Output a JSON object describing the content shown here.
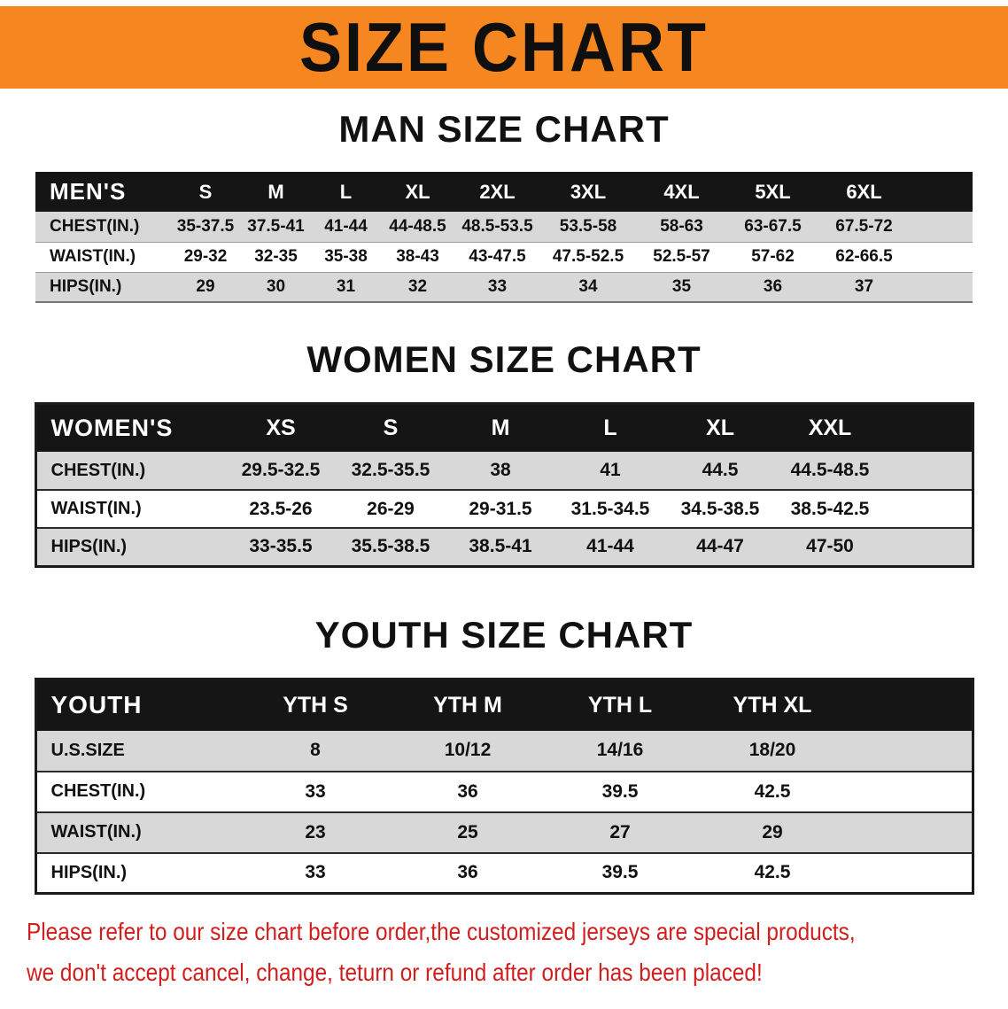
{
  "banner": {
    "title": "SIZE CHART"
  },
  "colors": {
    "banner_orange": "#f6861f",
    "header_black": "#151515",
    "row_gray": "#d8d8d8",
    "notice_red": "#d21d1d"
  },
  "sections": [
    {
      "id": "men",
      "heading": "MAN SIZE CHART",
      "table": {
        "label_header": "MEN'S",
        "size_headers": [
          "S",
          "M",
          "L",
          "XL",
          "2XL",
          "3XL",
          "4XL",
          "5XL",
          "6XL"
        ],
        "rows": [
          {
            "label": "CHEST(IN.)",
            "values": [
              "35-37.5",
              "37.5-41",
              "41-44",
              "44-48.5",
              "48.5-53.5",
              "53.5-58",
              "58-63",
              "63-67.5",
              "67.5-72"
            ]
          },
          {
            "label": "WAIST(IN.)",
            "values": [
              "29-32",
              "32-35",
              "35-38",
              "38-43",
              "43-47.5",
              "47.5-52.5",
              "52.5-57",
              "57-62",
              "62-66.5"
            ]
          },
          {
            "label": "HIPS(IN.)",
            "values": [
              "29",
              "30",
              "31",
              "32",
              "33",
              "34",
              "35",
              "36",
              "37"
            ]
          }
        ]
      }
    },
    {
      "id": "women",
      "heading": "WOMEN SIZE CHART",
      "table": {
        "label_header": "WOMEN'S",
        "size_headers": [
          "XS",
          "S",
          "M",
          "L",
          "XL",
          "XXL"
        ],
        "rows": [
          {
            "label": "CHEST(IN.)",
            "values": [
              "29.5-32.5",
              "32.5-35.5",
              "38",
              "41",
              "44.5",
              "44.5-48.5"
            ]
          },
          {
            "label": "WAIST(IN.)",
            "values": [
              "23.5-26",
              "26-29",
              "29-31.5",
              "31.5-34.5",
              "34.5-38.5",
              "38.5-42.5"
            ]
          },
          {
            "label": "HIPS(IN.)",
            "values": [
              "33-35.5",
              "35.5-38.5",
              "38.5-41",
              "41-44",
              "44-47",
              "47-50"
            ]
          }
        ]
      }
    },
    {
      "id": "youth",
      "heading": "YOUTH SIZE CHART",
      "table": {
        "label_header": "YOUTH",
        "size_headers": [
          "YTH S",
          "YTH M",
          "YTH L",
          "YTH XL"
        ],
        "rows": [
          {
            "label": "U.S.SIZE",
            "values": [
              "8",
              "10/12",
              "14/16",
              "18/20"
            ]
          },
          {
            "label": "CHEST(IN.)",
            "values": [
              "33",
              "36",
              "39.5",
              "42.5"
            ]
          },
          {
            "label": "WAIST(IN.)",
            "values": [
              "23",
              "25",
              "27",
              "29"
            ]
          },
          {
            "label": "HIPS(IN.)",
            "values": [
              "33",
              "36",
              "39.5",
              "42.5"
            ]
          }
        ]
      }
    }
  ],
  "footer": {
    "lines": [
      "Please refer to our size chart before order,the customized jerseys are special products,",
      "we don't accept cancel, change, teturn or refund after order has been placed!"
    ]
  }
}
